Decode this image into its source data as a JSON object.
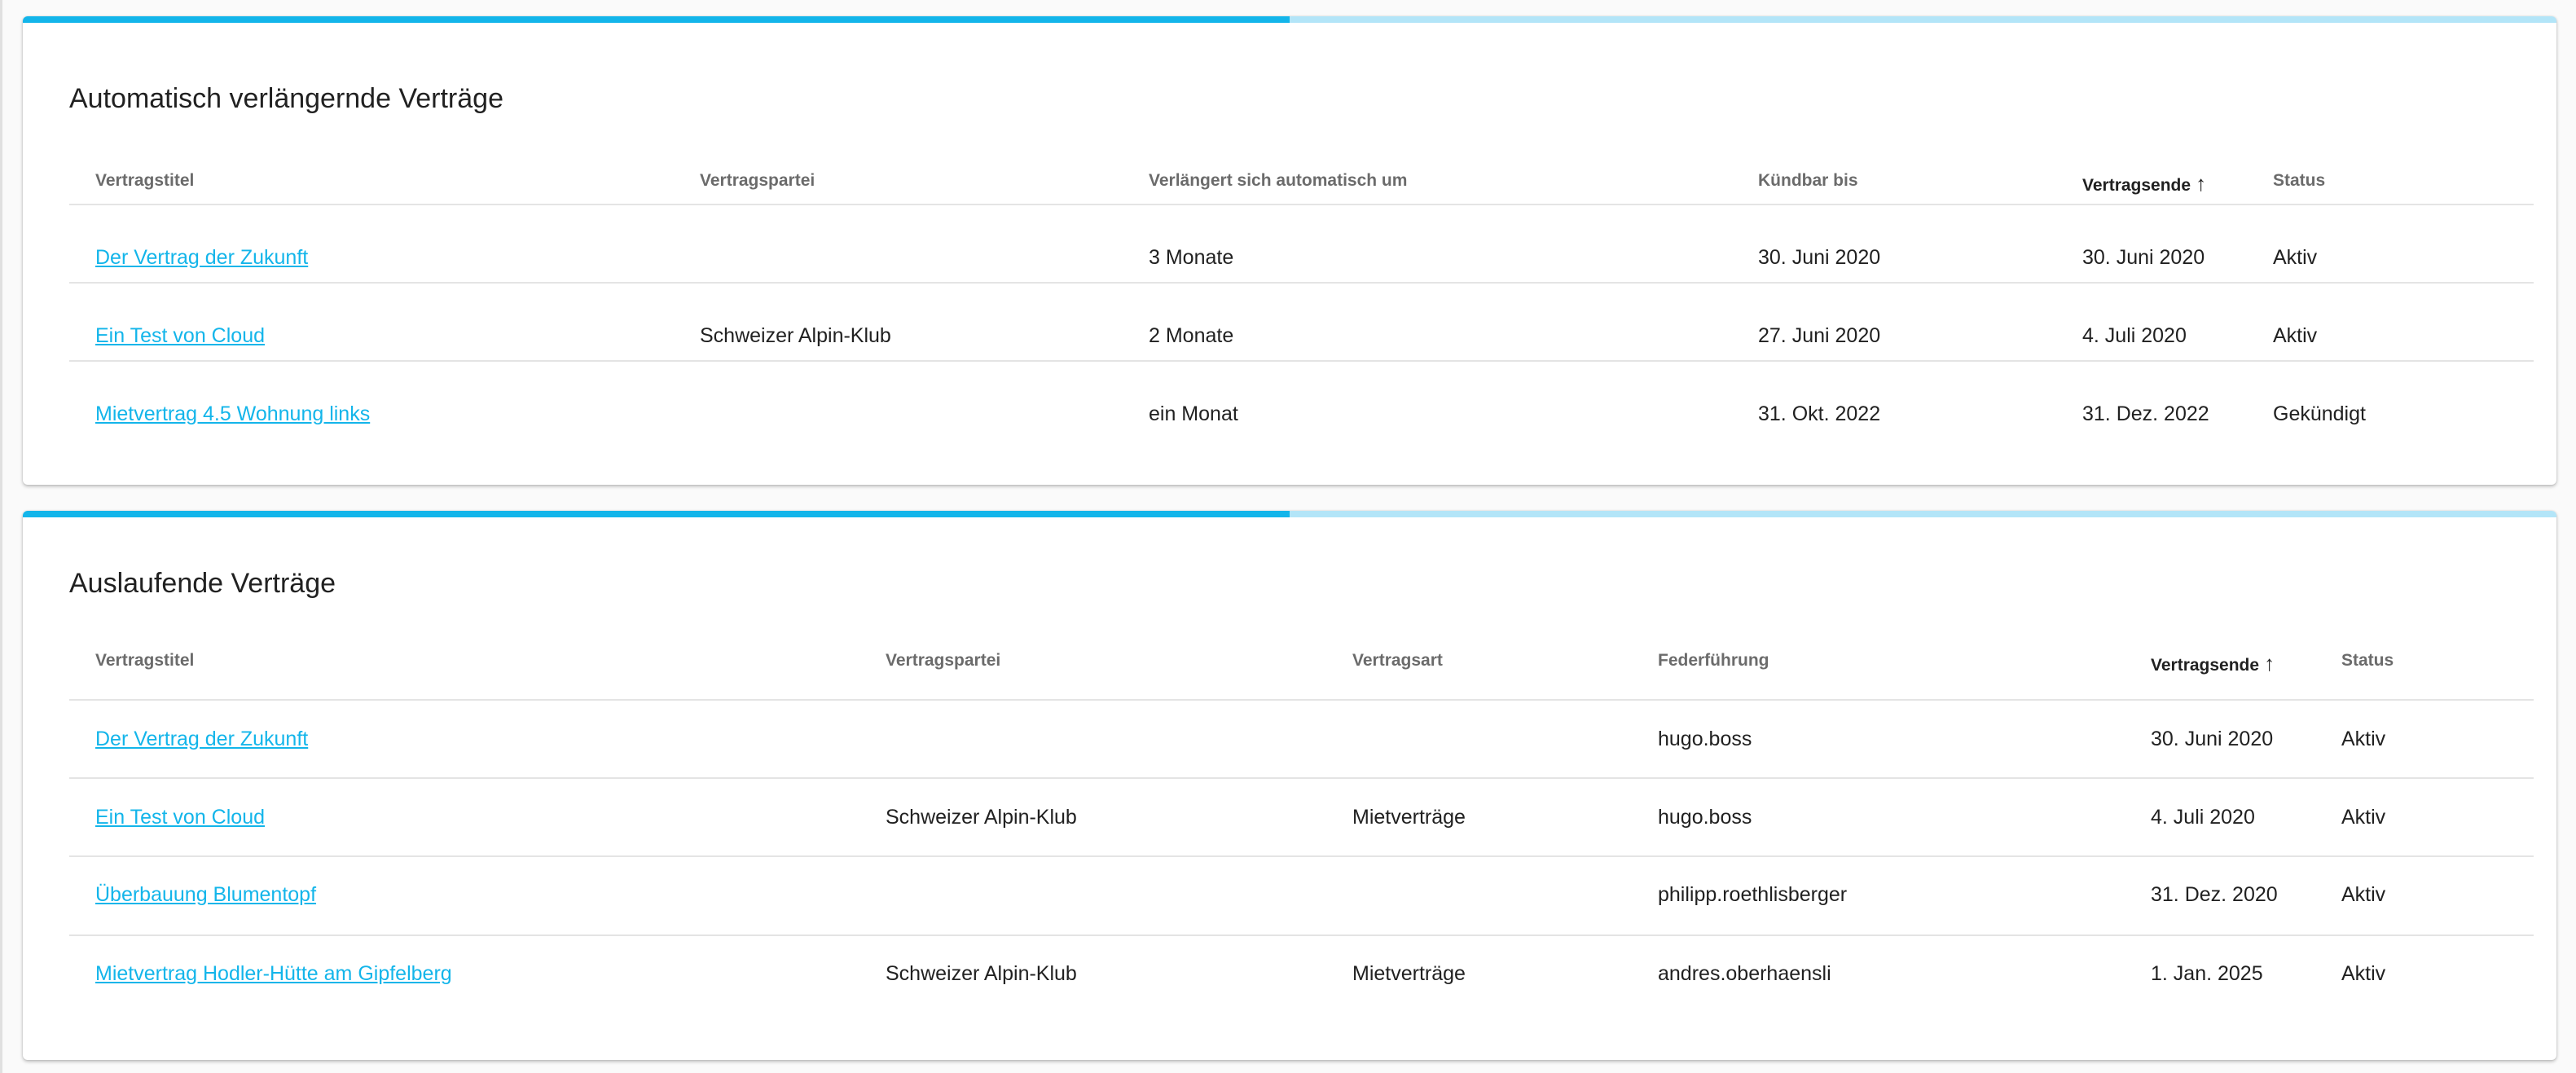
{
  "colors": {
    "accent": "#13b5ea",
    "accent_light": "#b3e5f8"
  },
  "sections": [
    {
      "title": "Automatisch verlängernde Verträge",
      "progress_percent": 50,
      "columns": [
        "Vertragstitel",
        "Vertragspartei",
        "Verlängert sich automatisch um",
        "Kündbar bis",
        "Vertragsende",
        "Status"
      ],
      "sorted_column": 4,
      "sort_icon": "arrow-up-icon",
      "rows": [
        [
          "Der Vertrag der Zukunft",
          "",
          "3 Monate",
          "30. Juni 2020",
          "30. Juni 2020",
          "Aktiv"
        ],
        [
          "Ein Test von Cloud",
          "Schweizer Alpin-Klub",
          "2 Monate",
          "27. Juni 2020",
          "4. Juli 2020",
          "Aktiv"
        ],
        [
          "Mietvertrag 4.5 Wohnung links",
          "",
          "ein Monat",
          "31. Okt. 2022",
          "31. Dez. 2022",
          "Gekündigt"
        ]
      ]
    },
    {
      "title": "Auslaufende Verträge",
      "progress_percent": 50,
      "columns": [
        "Vertragstitel",
        "Vertragspartei",
        "Vertragsart",
        "Federführung",
        "Vertragsende",
        "Status"
      ],
      "sorted_column": 4,
      "sort_icon": "arrow-up-icon",
      "rows": [
        [
          "Der Vertrag der Zukunft",
          "",
          "",
          "hugo.boss",
          "30. Juni 2020",
          "Aktiv"
        ],
        [
          "Ein Test von Cloud",
          "Schweizer Alpin-Klub",
          "Mietverträge",
          "hugo.boss",
          "4. Juli 2020",
          "Aktiv"
        ],
        [
          "Überbauung Blumentopf",
          "",
          "",
          "philipp.roethlisberger",
          "31. Dez. 2020",
          "Aktiv"
        ],
        [
          "Mietvertrag Hodler-Hütte am Gipfelberg",
          "Schweizer Alpin-Klub",
          "Mietverträge",
          "andres.oberhaensli",
          "1. Jan. 2025",
          "Aktiv"
        ]
      ]
    }
  ]
}
